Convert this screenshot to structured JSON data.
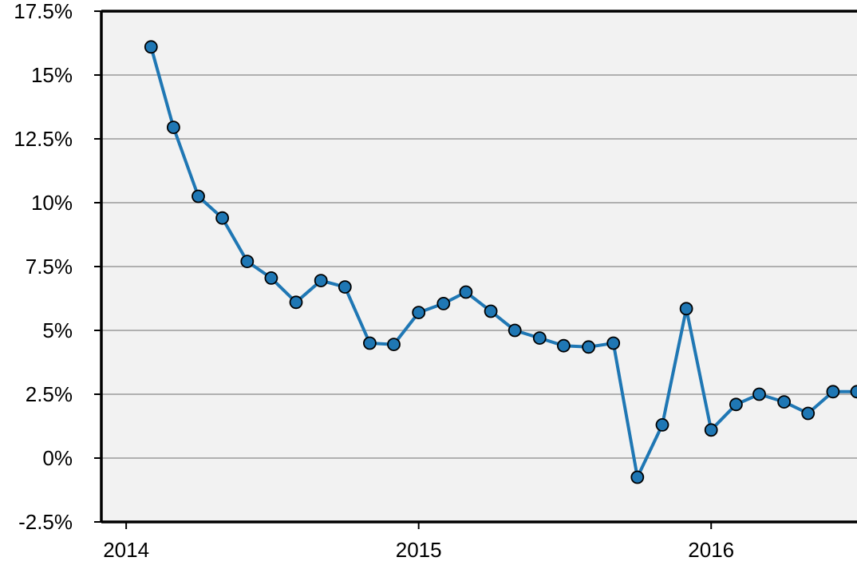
{
  "chart_data": {
    "type": "line",
    "title": "",
    "xlabel": "",
    "ylabel": "",
    "x_axis": {
      "kind": "date",
      "range": [
        "2013-12-01",
        "2016-07-01"
      ],
      "ticks": [
        {
          "value": "2014-01-01",
          "label": "2014"
        },
        {
          "value": "2015-01-01",
          "label": "2015"
        },
        {
          "value": "2016-01-01",
          "label": "2016"
        }
      ]
    },
    "y_axis": {
      "range": [
        -2.5,
        17.5
      ],
      "ticks": [
        {
          "value": -2.5,
          "label": "-2.5%"
        },
        {
          "value": 0,
          "label": "0%"
        },
        {
          "value": 2.5,
          "label": "2.5%"
        },
        {
          "value": 5,
          "label": "5%"
        },
        {
          "value": 7.5,
          "label": "7.5%"
        },
        {
          "value": 10,
          "label": "10%"
        },
        {
          "value": 12.5,
          "label": "12.5%"
        },
        {
          "value": 15,
          "label": "15%"
        },
        {
          "value": 17.5,
          "label": "17.5%"
        }
      ]
    },
    "grid": "horizontal",
    "legend": "none",
    "colors": {
      "series": "#1f77b4",
      "plot_background": "#f2f2f2",
      "grid": "#9a9a9a"
    },
    "series": [
      {
        "x": [
          "2014-02-01",
          "2014-03-01",
          "2014-04-01",
          "2014-05-01",
          "2014-06-01",
          "2014-07-01",
          "2014-08-01",
          "2014-09-01",
          "2014-10-01",
          "2014-11-01",
          "2014-12-01",
          "2015-01-01",
          "2015-02-01",
          "2015-03-01",
          "2015-04-01",
          "2015-05-01",
          "2015-06-01",
          "2015-07-01",
          "2015-08-01",
          "2015-09-01",
          "2015-10-01",
          "2015-11-01",
          "2015-12-01",
          "2016-01-01",
          "2016-02-01",
          "2016-03-01",
          "2016-04-01",
          "2016-05-01",
          "2016-06-01",
          "2016-07-01"
        ],
        "values": [
          16.1,
          12.95,
          10.25,
          9.4,
          7.7,
          7.05,
          6.1,
          6.95,
          6.7,
          4.5,
          4.45,
          5.7,
          6.05,
          6.5,
          5.75,
          5.0,
          4.7,
          4.4,
          4.35,
          4.5,
          -0.75,
          1.3,
          5.85,
          1.1,
          2.1,
          2.5,
          2.2,
          1.75,
          2.6,
          2.6
        ]
      }
    ]
  }
}
